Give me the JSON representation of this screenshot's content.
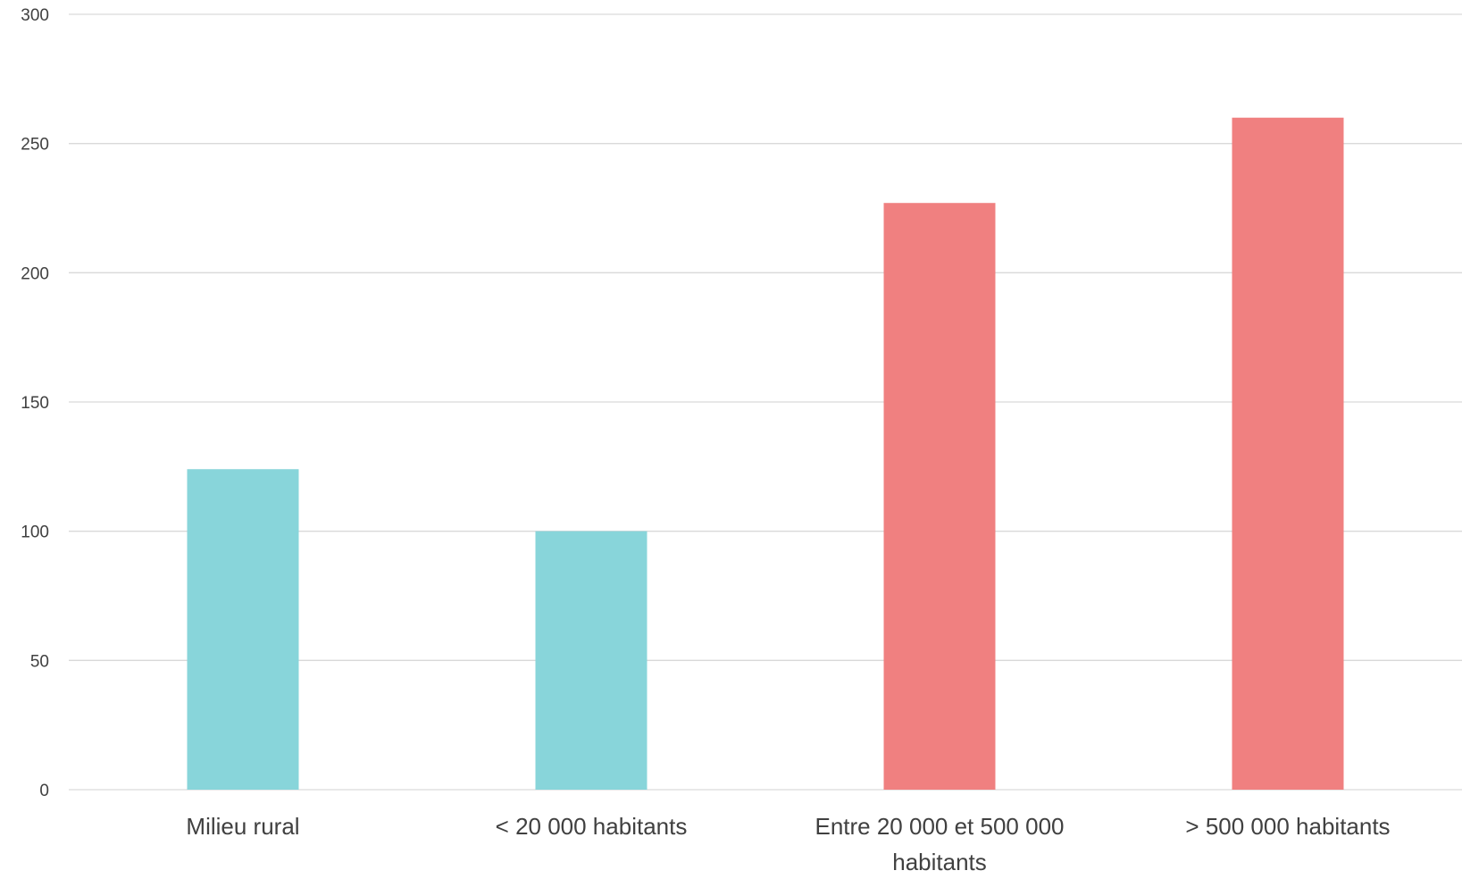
{
  "chart_data": {
    "type": "bar",
    "categories": [
      [
        "Milieu rural"
      ],
      [
        "< 20 000 habitants"
      ],
      [
        "Entre 20 000 et 500 000",
        "habitants"
      ],
      [
        ">  500 000 habitants"
      ]
    ],
    "values": [
      124,
      100,
      227,
      260
    ],
    "bar_colors": [
      "#88d5da",
      "#88d5da",
      "#f08080",
      "#f08080"
    ],
    "ylim": [
      0,
      300
    ],
    "yticks": [
      0,
      50,
      100,
      150,
      200,
      250,
      300
    ],
    "grid": true,
    "title": "",
    "xlabel": "",
    "ylabel": ""
  }
}
